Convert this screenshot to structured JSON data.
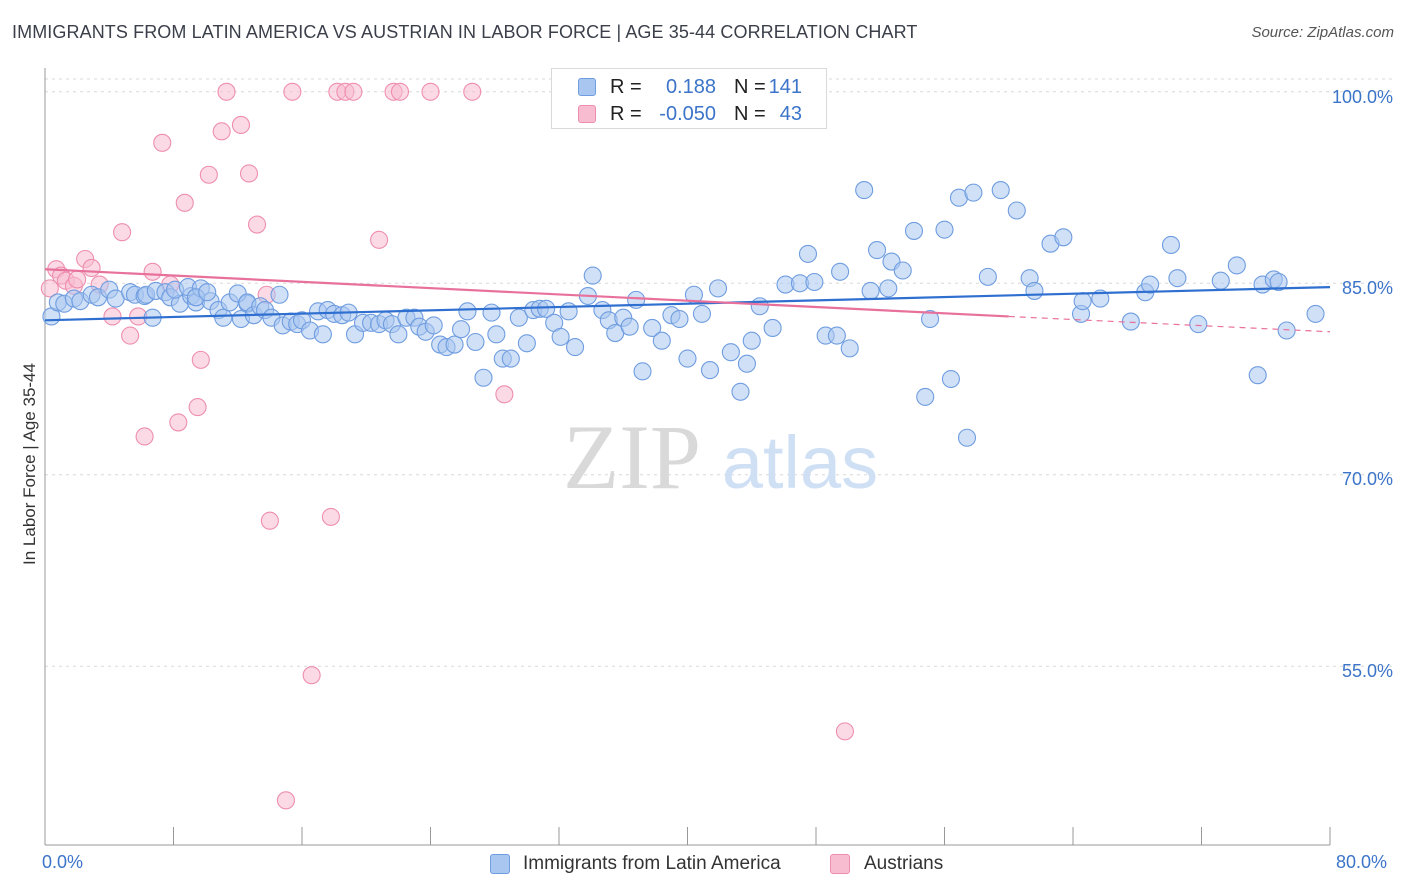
{
  "title": "IMMIGRANTS FROM LATIN AMERICA VS AUSTRIAN IN LABOR FORCE | AGE 35-44 CORRELATION CHART",
  "source": "Source: ZipAtlas.com",
  "watermark": {
    "zip": "ZIP",
    "atlas": "atlas"
  },
  "legend": {
    "rows": [
      {
        "r_label": "R =",
        "r_value": "0.188",
        "n_label": "N =",
        "n_value": "141",
        "color": "#a9c6f0",
        "border": "#6f9de0"
      },
      {
        "r_label": "R =",
        "r_value": "-0.050",
        "n_label": "N =",
        "n_value": "43",
        "color": "#f7bcd0",
        "border": "#ee8eae"
      }
    ]
  },
  "bottom_legend": [
    {
      "label": "Immigrants from Latin America",
      "color": "#a9c6f0",
      "border": "#6f9de0"
    },
    {
      "label": "Austrians",
      "color": "#f7bcd0",
      "border": "#ee8eae"
    }
  ],
  "axes": {
    "ylabel": "In Labor Force | Age 35-44",
    "y_ticks": [
      "100.0%",
      "85.0%",
      "70.0%",
      "55.0%"
    ],
    "x_ticks": [
      "0.0%",
      "80.0%"
    ]
  },
  "chart_data": {
    "type": "scatter",
    "title": "IMMIGRANTS FROM LATIN AMERICA VS AUSTRIAN IN LABOR FORCE | AGE 35-44 CORRELATION CHART",
    "xlabel": "",
    "ylabel": "In Labor Force | Age 35-44",
    "xlim": [
      0,
      80
    ],
    "ylim": [
      41,
      101
    ],
    "y_gridlines": [
      55,
      70,
      85,
      100
    ],
    "grid": true,
    "legend_placement": "top-center",
    "series": [
      {
        "name": "Immigrants from Latin America",
        "color": "#6f9de0",
        "fill": "#a9c6f0",
        "trend": {
          "x": [
            0,
            80
          ],
          "y": [
            82.1,
            84.7
          ],
          "color": "#2f6fd0"
        },
        "points": [
          [
            0.4,
            82.4
          ],
          [
            0.8,
            83.5
          ],
          [
            1.2,
            83.4
          ],
          [
            1.8,
            83.8
          ],
          [
            2.2,
            83.6
          ],
          [
            2.9,
            84.1
          ],
          [
            3.3,
            83.9
          ],
          [
            4.0,
            84.5
          ],
          [
            4.4,
            83.8
          ],
          [
            5.3,
            84.3
          ],
          [
            5.6,
            84.1
          ],
          [
            6.2,
            84.0
          ],
          [
            6.3,
            84.1
          ],
          [
            6.7,
            82.3
          ],
          [
            6.9,
            84.4
          ],
          [
            7.5,
            84.3
          ],
          [
            7.8,
            83.9
          ],
          [
            8.4,
            83.4
          ],
          [
            8.1,
            84.5
          ],
          [
            9.1,
            84.0
          ],
          [
            9.4,
            83.5
          ],
          [
            8.9,
            84.7
          ],
          [
            9.7,
            84.6
          ],
          [
            10.3,
            83.6
          ],
          [
            9.4,
            83.9
          ],
          [
            10.1,
            84.3
          ],
          [
            10.8,
            82.9
          ],
          [
            11.1,
            82.3
          ],
          [
            11.5,
            83.5
          ],
          [
            12.2,
            82.2
          ],
          [
            12.6,
            83.4
          ],
          [
            12.0,
            84.2
          ],
          [
            12.6,
            83.5
          ],
          [
            13.0,
            82.5
          ],
          [
            13.4,
            83.2
          ],
          [
            13.7,
            82.9
          ],
          [
            14.1,
            82.3
          ],
          [
            14.6,
            84.1
          ],
          [
            14.8,
            81.7
          ],
          [
            15.3,
            82.0
          ],
          [
            15.7,
            81.8
          ],
          [
            16.0,
            82.1
          ],
          [
            16.5,
            81.3
          ],
          [
            17.0,
            82.8
          ],
          [
            17.3,
            81.0
          ],
          [
            17.6,
            82.9
          ],
          [
            18.0,
            82.6
          ],
          [
            18.5,
            82.5
          ],
          [
            18.9,
            82.7
          ],
          [
            19.3,
            81.0
          ],
          [
            19.8,
            81.9
          ],
          [
            20.3,
            81.9
          ],
          [
            20.8,
            81.8
          ],
          [
            21.2,
            82.1
          ],
          [
            21.6,
            81.8
          ],
          [
            22.0,
            81.0
          ],
          [
            22.5,
            82.3
          ],
          [
            23.0,
            82.3
          ],
          [
            23.3,
            81.6
          ],
          [
            23.7,
            81.2
          ],
          [
            24.2,
            81.7
          ],
          [
            24.6,
            80.2
          ],
          [
            25.0,
            80.0
          ],
          [
            25.5,
            80.2
          ],
          [
            25.9,
            81.4
          ],
          [
            26.3,
            82.8
          ],
          [
            26.8,
            80.4
          ],
          [
            27.3,
            77.6
          ],
          [
            27.8,
            82.7
          ],
          [
            28.1,
            81.0
          ],
          [
            28.5,
            79.1
          ],
          [
            29.0,
            79.1
          ],
          [
            29.5,
            82.3
          ],
          [
            30.0,
            80.3
          ],
          [
            30.4,
            82.9
          ],
          [
            30.8,
            83.0
          ],
          [
            31.2,
            83.0
          ],
          [
            31.7,
            81.9
          ],
          [
            32.1,
            80.8
          ],
          [
            32.6,
            82.8
          ],
          [
            33.0,
            80.0
          ],
          [
            33.8,
            84.0
          ],
          [
            34.1,
            85.6
          ],
          [
            34.7,
            82.9
          ],
          [
            35.1,
            82.1
          ],
          [
            35.5,
            81.1
          ],
          [
            36.0,
            82.3
          ],
          [
            36.4,
            81.6
          ],
          [
            36.8,
            83.7
          ],
          [
            37.2,
            78.1
          ],
          [
            37.8,
            81.5
          ],
          [
            38.4,
            80.5
          ],
          [
            39.0,
            82.5
          ],
          [
            39.5,
            82.2
          ],
          [
            40.0,
            79.1
          ],
          [
            40.4,
            84.1
          ],
          [
            40.9,
            82.6
          ],
          [
            41.4,
            78.2
          ],
          [
            41.9,
            84.6
          ],
          [
            42.7,
            79.6
          ],
          [
            43.3,
            76.5
          ],
          [
            43.7,
            78.7
          ],
          [
            44.0,
            80.5
          ],
          [
            44.5,
            83.2
          ],
          [
            45.3,
            81.5
          ],
          [
            46.1,
            84.9
          ],
          [
            47.0,
            85.0
          ],
          [
            47.5,
            87.3
          ],
          [
            47.9,
            85.1
          ],
          [
            48.6,
            80.9
          ],
          [
            49.3,
            80.9
          ],
          [
            49.5,
            85.9
          ],
          [
            50.1,
            79.9
          ],
          [
            51.0,
            92.3
          ],
          [
            51.4,
            84.4
          ],
          [
            51.8,
            87.6
          ],
          [
            52.5,
            84.6
          ],
          [
            52.7,
            86.7
          ],
          [
            53.4,
            86.0
          ],
          [
            54.1,
            89.1
          ],
          [
            54.8,
            76.1
          ],
          [
            55.1,
            82.2
          ],
          [
            56.0,
            89.2
          ],
          [
            56.4,
            77.5
          ],
          [
            56.9,
            91.7
          ],
          [
            57.4,
            72.9
          ],
          [
            57.8,
            92.1
          ],
          [
            58.7,
            85.5
          ],
          [
            59.5,
            92.3
          ],
          [
            60.5,
            90.7
          ],
          [
            61.3,
            85.4
          ],
          [
            61.6,
            84.4
          ],
          [
            62.6,
            88.1
          ],
          [
            63.4,
            88.6
          ],
          [
            64.5,
            82.6
          ],
          [
            64.6,
            83.6
          ],
          [
            65.7,
            83.8
          ],
          [
            67.6,
            82.0
          ],
          [
            68.5,
            84.3
          ],
          [
            68.8,
            84.9
          ],
          [
            70.1,
            88.0
          ],
          [
            70.5,
            85.4
          ],
          [
            71.8,
            81.8
          ],
          [
            73.2,
            85.2
          ],
          [
            74.2,
            86.4
          ],
          [
            75.5,
            77.8
          ],
          [
            75.8,
            84.9
          ],
          [
            76.5,
            85.3
          ],
          [
            76.8,
            85.1
          ],
          [
            77.3,
            81.3
          ],
          [
            79.1,
            82.6
          ]
        ]
      },
      {
        "name": "Austrians",
        "color": "#ee8eae",
        "fill": "#f7bcd0",
        "trend": {
          "x": [
            0,
            60
          ],
          "y": [
            86.1,
            82.4
          ],
          "color": "#e8719c",
          "dashed_to": [
            80,
            81.2
          ]
        },
        "points": [
          [
            0.3,
            84.6
          ],
          [
            0.7,
            86.1
          ],
          [
            1.0,
            85.6
          ],
          [
            1.3,
            85.2
          ],
          [
            1.8,
            84.8
          ],
          [
            2.0,
            85.3
          ],
          [
            2.5,
            86.9
          ],
          [
            2.9,
            86.2
          ],
          [
            3.4,
            84.9
          ],
          [
            4.2,
            82.4
          ],
          [
            4.8,
            89.0
          ],
          [
            5.3,
            80.9
          ],
          [
            5.8,
            82.4
          ],
          [
            6.2,
            73.0
          ],
          [
            6.7,
            85.9
          ],
          [
            7.3,
            96.0
          ],
          [
            7.8,
            84.9
          ],
          [
            8.3,
            74.1
          ],
          [
            8.7,
            91.3
          ],
          [
            9.5,
            75.3
          ],
          [
            9.7,
            79.0
          ],
          [
            10.2,
            93.5
          ],
          [
            11.0,
            96.9
          ],
          [
            11.3,
            100.0
          ],
          [
            12.2,
            97.4
          ],
          [
            12.7,
            93.6
          ],
          [
            13.2,
            89.6
          ],
          [
            13.8,
            84.1
          ],
          [
            14.0,
            66.4
          ],
          [
            15.0,
            44.5
          ],
          [
            15.4,
            100.0
          ],
          [
            16.6,
            54.3
          ],
          [
            17.8,
            66.7
          ],
          [
            18.2,
            100.0
          ],
          [
            18.7,
            100.0
          ],
          [
            19.2,
            100.0
          ],
          [
            20.8,
            88.4
          ],
          [
            21.7,
            100.0
          ],
          [
            22.1,
            100.0
          ],
          [
            24.0,
            100.0
          ],
          [
            26.6,
            100.0
          ],
          [
            28.6,
            76.3
          ],
          [
            49.8,
            49.9
          ]
        ]
      }
    ]
  }
}
